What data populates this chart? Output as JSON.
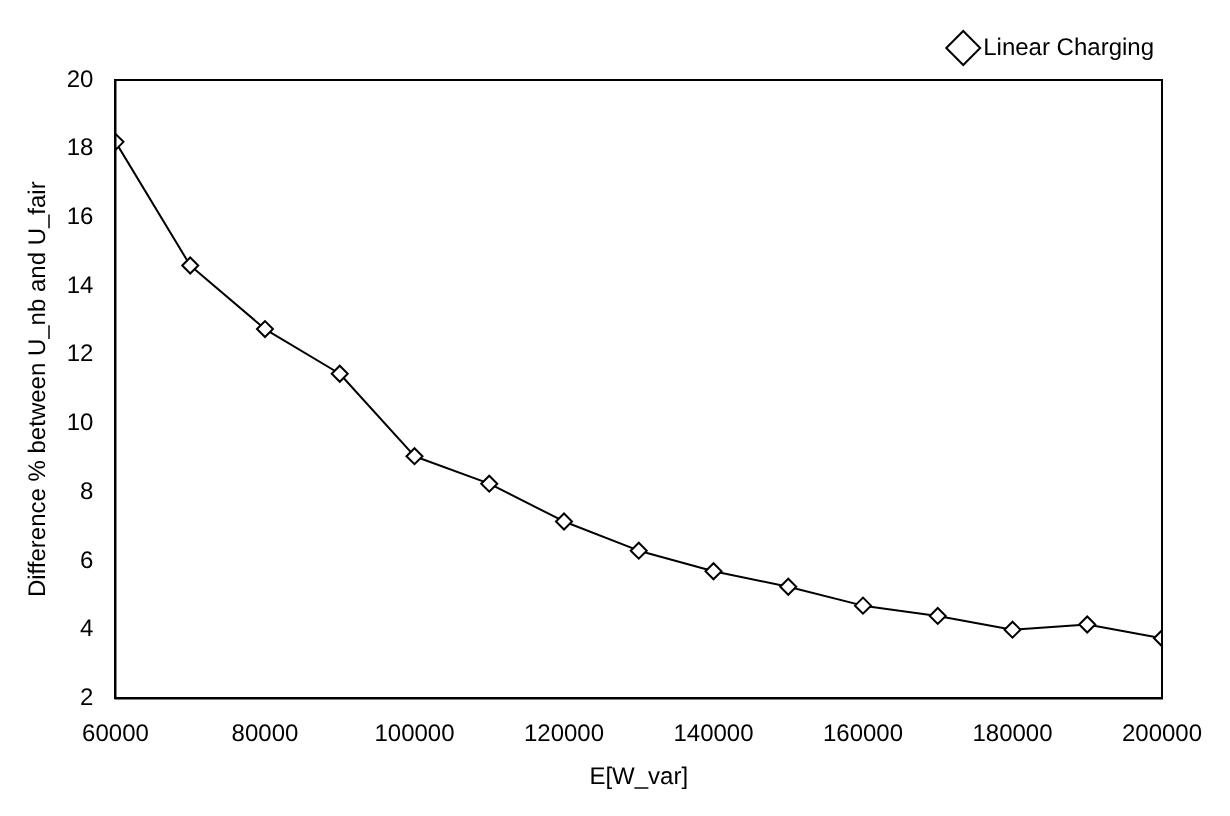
{
  "chart_data": {
    "type": "line",
    "xlabel": "E[W_var]",
    "ylabel": "Difference % between U_nb and U_fair",
    "x": [
      60000,
      70000,
      80000,
      90000,
      100000,
      110000,
      120000,
      130000,
      140000,
      150000,
      160000,
      170000,
      180000,
      190000,
      200000
    ],
    "series": [
      {
        "name": "Linear Charging",
        "color": "#000000",
        "values": [
          18.2,
          14.6,
          12.75,
          11.45,
          9.05,
          8.25,
          7.15,
          6.3,
          5.7,
          5.25,
          4.7,
          4.4,
          4.0,
          4.15,
          3.75
        ]
      }
    ],
    "xlim": [
      60000,
      200000
    ],
    "xticks": [
      60000,
      80000,
      100000,
      120000,
      140000,
      160000,
      180000,
      200000
    ],
    "ylim": [
      2,
      20
    ],
    "yticks": [
      2,
      4,
      6,
      8,
      10,
      12,
      14,
      16,
      18,
      20
    ],
    "grid": false,
    "legend": "top right",
    "marker": "diamond",
    "line_style": "solid"
  }
}
